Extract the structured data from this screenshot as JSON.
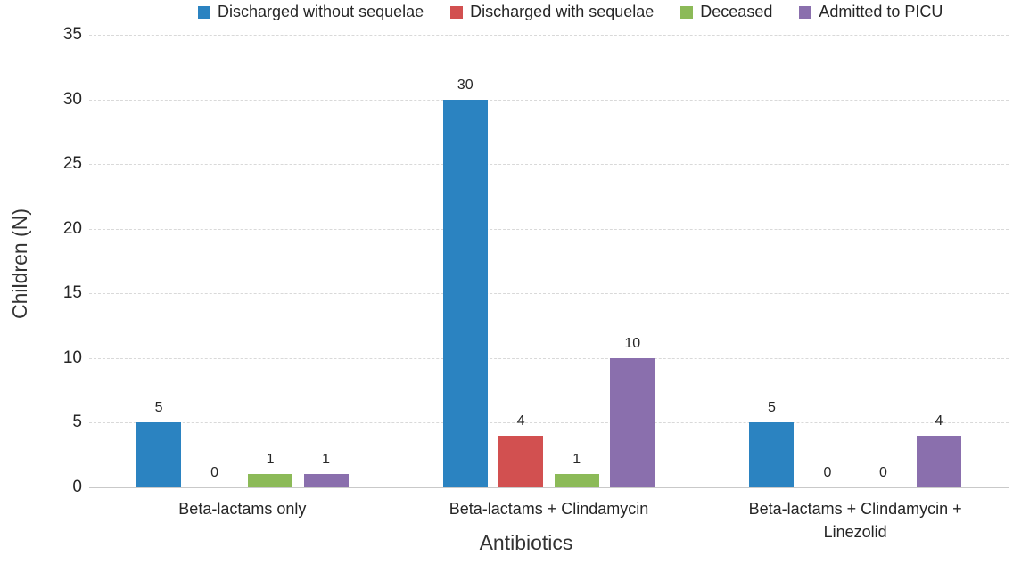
{
  "chart_data": {
    "type": "bar",
    "title": "",
    "xlabel": "Antibiotics",
    "ylabel": "Children (N)",
    "ylim": [
      0,
      35
    ],
    "yticks": [
      0,
      5,
      10,
      15,
      20,
      25,
      30,
      35
    ],
    "grid": true,
    "legend_position": "top",
    "categories": [
      "Beta-lactams only",
      "Beta-lactams + Clindamycin",
      "Beta-lactams + Clindamycin + Linezolid"
    ],
    "category_display_lines": [
      [
        "Beta-lactams only"
      ],
      [
        "Beta-lactams + Clindamycin"
      ],
      [
        "Beta-lactams + Clindamycin  +",
        "Linezolid"
      ]
    ],
    "series": [
      {
        "name": "Discharged without sequelae",
        "color": "#2b83c1",
        "values": [
          5,
          30,
          5
        ]
      },
      {
        "name": "Discharged with sequelae",
        "color": "#d25050",
        "values": [
          0,
          4,
          0
        ]
      },
      {
        "name": "Deceased",
        "color": "#8cba58",
        "values": [
          1,
          1,
          0
        ]
      },
      {
        "name": "Admitted to PICU",
        "color": "#8a6fad",
        "values": [
          1,
          10,
          4
        ]
      }
    ],
    "colors": {
      "text": "#262626",
      "gridline": "#d9d9d9",
      "axis_line": "#c9c9c9",
      "background": "#ffffff"
    }
  }
}
